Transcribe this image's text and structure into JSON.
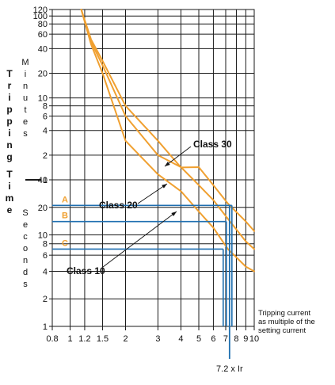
{
  "chart_data": {
    "type": "line",
    "x_axis": {
      "scale": "log",
      "range": [
        0.8,
        10
      ],
      "ticks": [
        0.8,
        1,
        1.2,
        1.5,
        2,
        3,
        4,
        5,
        6,
        7,
        8,
        9,
        10
      ],
      "tick_labels": [
        "0.8",
        "1",
        "1.2",
        "1.5",
        "2",
        "3",
        "4",
        "5",
        "6",
        "7",
        "8",
        "9",
        "10"
      ],
      "label_lines": [
        "Tripping current",
        "as multiple of the",
        "setting current"
      ]
    },
    "y_axis": {
      "scale": "log",
      "seconds_range": [
        1,
        40
      ],
      "seconds_ticks": [
        1,
        2,
        4,
        6,
        8,
        10,
        20,
        40
      ],
      "minutes_range": [
        1,
        120
      ],
      "minutes_ticks": [
        1,
        2,
        4,
        6,
        8,
        10,
        20,
        40,
        60,
        80,
        100,
        120
      ],
      "label_main": "Tripping Time",
      "label_minutes": "Minutes",
      "label_seconds": "Seconds"
    },
    "series": [
      {
        "name": "Class 10",
        "points_seconds": [
          [
            1.15,
            7200
          ],
          [
            1.3,
            2700
          ],
          [
            1.5,
            1200
          ],
          [
            2,
            180
          ],
          [
            3,
            70
          ],
          [
            4,
            30
          ],
          [
            5,
            18
          ],
          [
            6,
            12
          ],
          [
            7.2,
            7
          ],
          [
            9,
            4.5
          ],
          [
            10,
            4
          ]
        ]
      },
      {
        "name": "Class 20",
        "points_seconds": [
          [
            1.15,
            7200
          ],
          [
            1.3,
            2900
          ],
          [
            1.5,
            1500
          ],
          [
            2,
            360
          ],
          [
            3,
            120
          ],
          [
            4,
            55
          ],
          [
            5,
            35
          ],
          [
            6,
            24
          ],
          [
            7.2,
            15
          ],
          [
            9,
            8.5
          ],
          [
            10,
            7
          ]
        ]
      },
      {
        "name": "Class 30",
        "points_seconds": [
          [
            1.15,
            7200
          ],
          [
            1.3,
            3100
          ],
          [
            1.5,
            1700
          ],
          [
            2,
            480
          ],
          [
            3,
            180
          ],
          [
            4,
            85
          ],
          [
            5,
            55
          ],
          [
            6,
            35
          ],
          [
            7.2,
            22
          ],
          [
            9,
            14
          ],
          [
            10,
            11
          ]
        ]
      }
    ],
    "levels": [
      {
        "label": "A",
        "seconds": 21
      },
      {
        "label": "B",
        "seconds": 14
      },
      {
        "label": "C",
        "seconds": 7
      }
    ],
    "marker": {
      "x": 7.2,
      "label": "7.2 x Ir"
    },
    "colors": {
      "curve": "#f0a030",
      "grid": "#1a1a1a",
      "level_line": "#1f6fb0",
      "level_label": "#f0a030"
    }
  }
}
